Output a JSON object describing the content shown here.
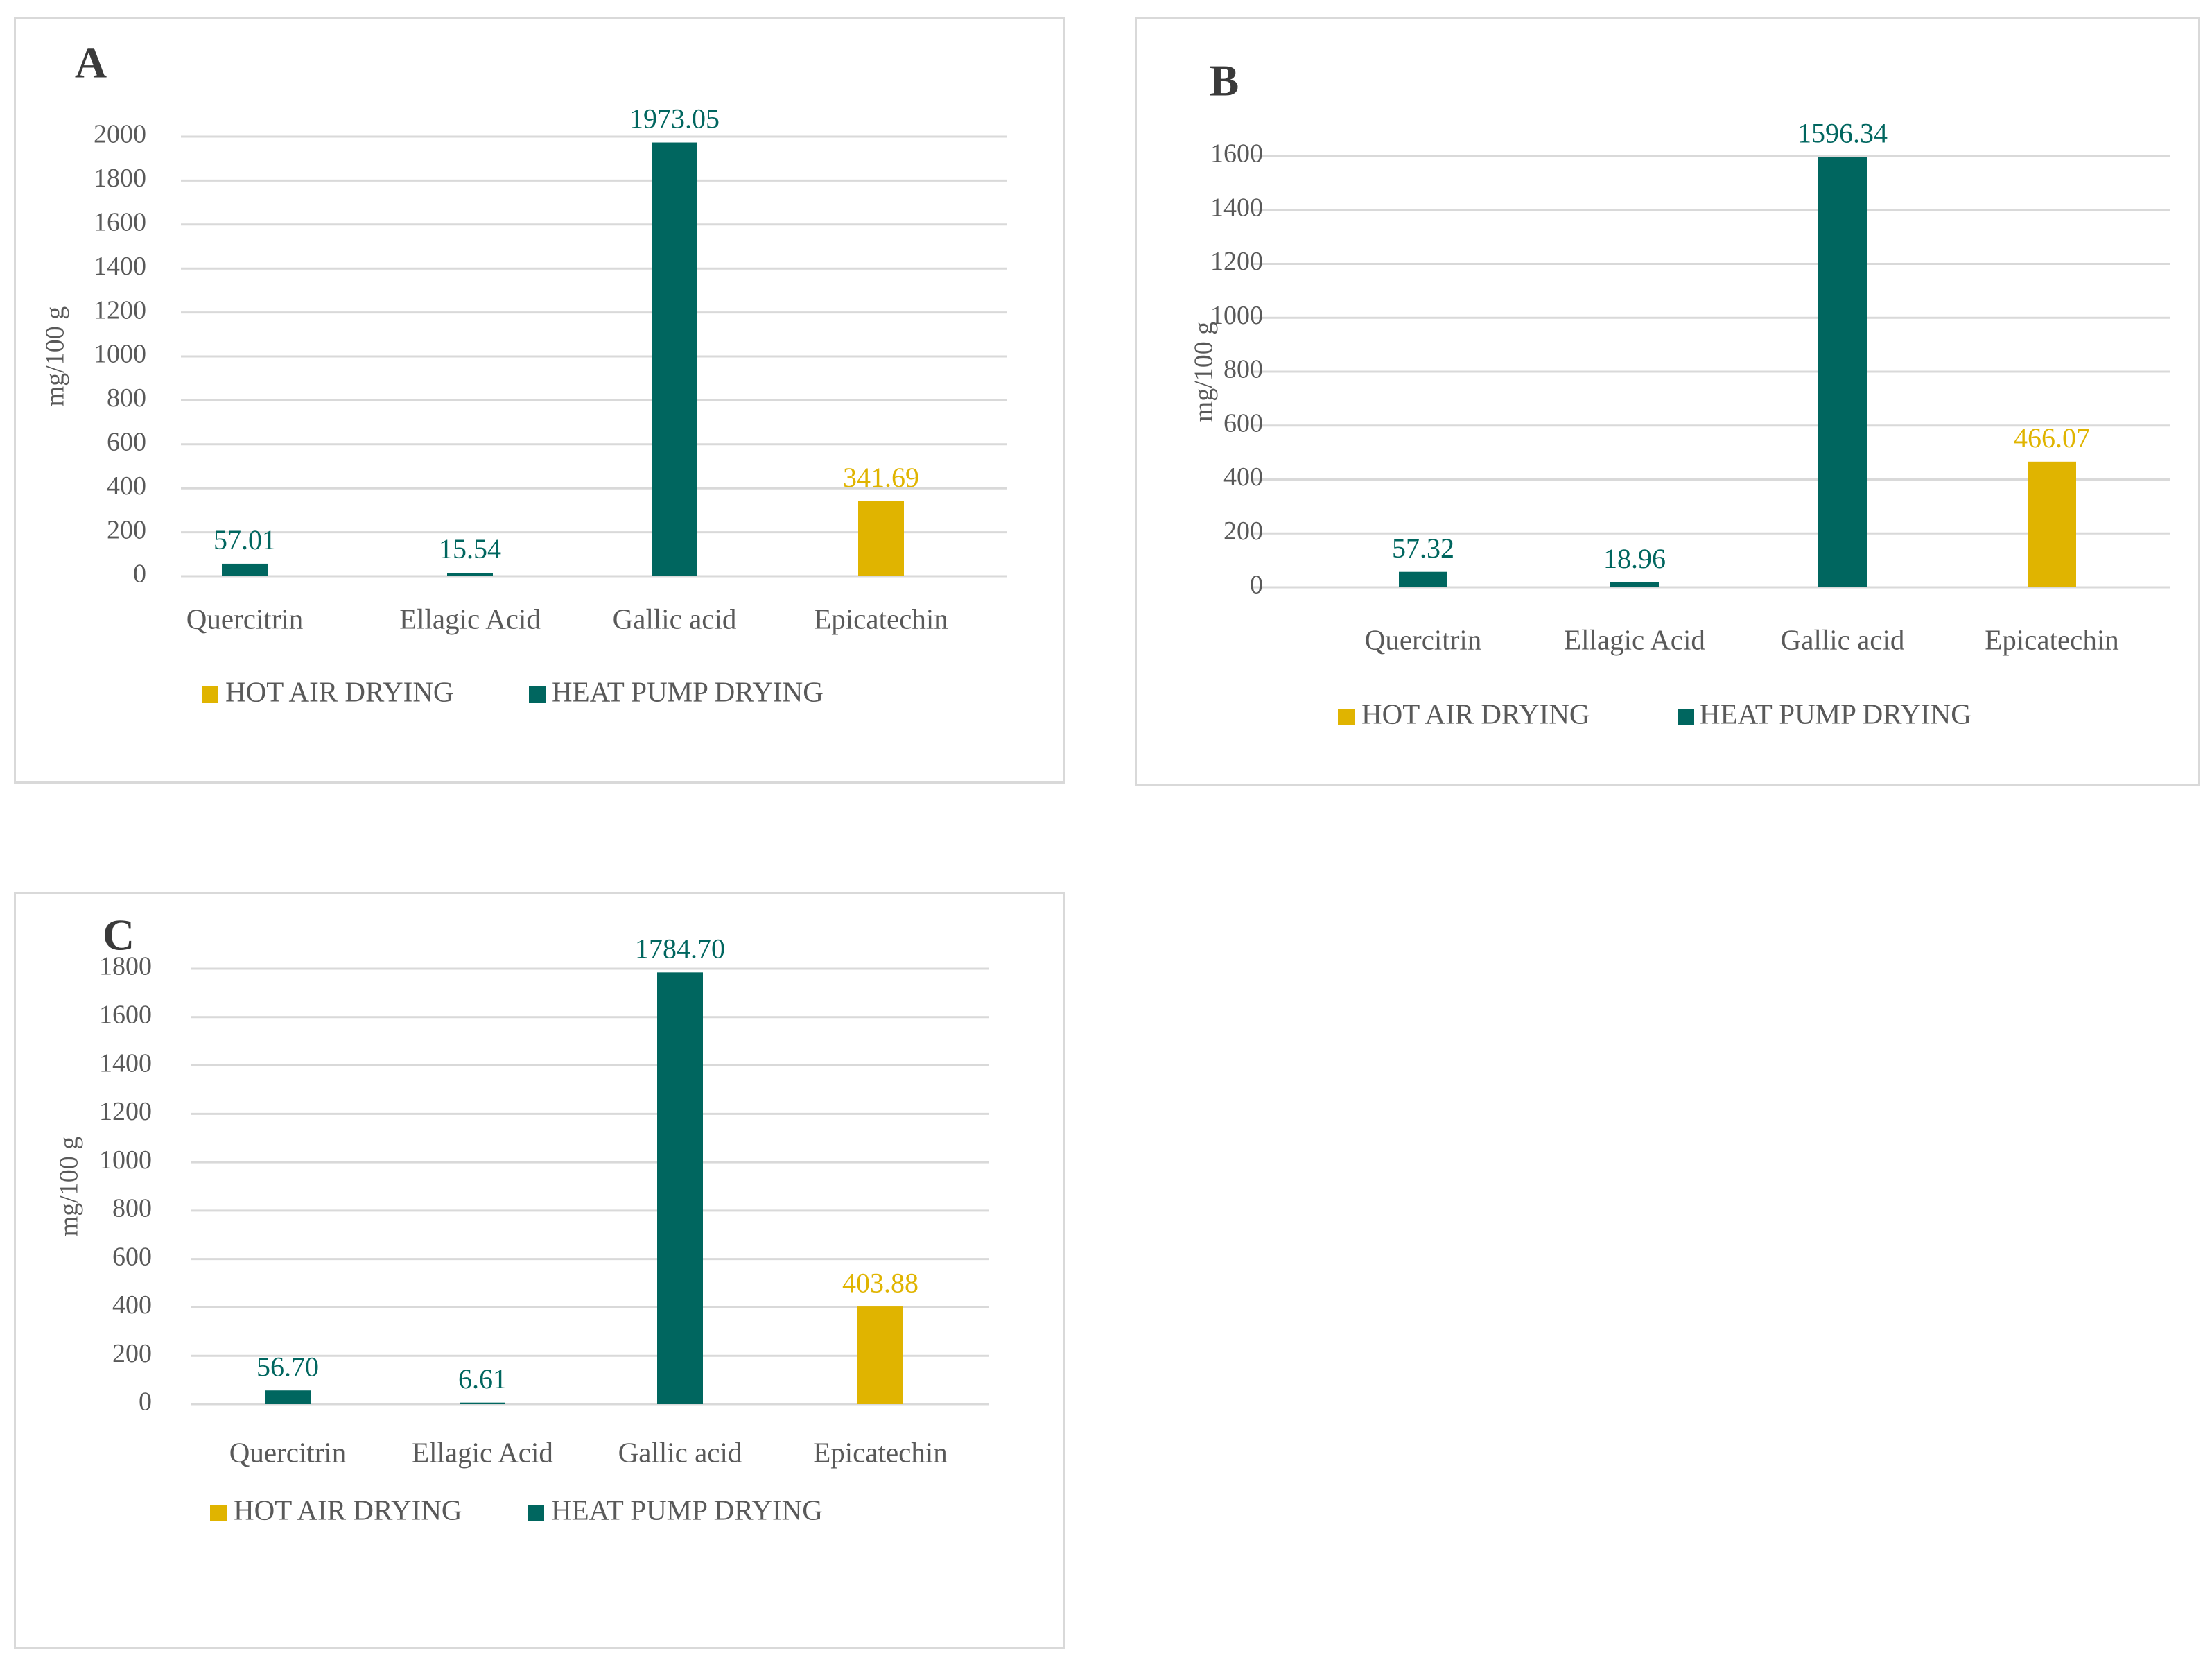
{
  "colors": {
    "hot_air": "#e0b400",
    "heat_pump": "#00665f",
    "grid": "#d9d9d9",
    "text": "#595959"
  },
  "legend": {
    "hot_air": "HOT AIR DRYING",
    "heat_pump": "HEAT PUMP DRYING"
  },
  "chart_data": [
    {
      "type": "bar",
      "title": "A",
      "ylabel": "mg/100 g",
      "xlabel": "",
      "categories": [
        "Quercitrin",
        "Ellagic Acid",
        "Gallic acid",
        "Epicatechin"
      ],
      "ylim": [
        0,
        2000
      ],
      "yticks": [
        0,
        200,
        400,
        600,
        800,
        1000,
        1200,
        1400,
        1600,
        1800,
        2000
      ],
      "bars": [
        {
          "category": "Quercitrin",
          "series": "heat_pump",
          "value": 57.01,
          "label": "57.01"
        },
        {
          "category": "Ellagic Acid",
          "series": "heat_pump",
          "value": 15.54,
          "label": "15.54"
        },
        {
          "category": "Gallic acid",
          "series": "heat_pump",
          "value": 1973.05,
          "label": "1973.05"
        },
        {
          "category": "Epicatechin",
          "series": "hot_air",
          "value": 341.69,
          "label": "341.69"
        }
      ]
    },
    {
      "type": "bar",
      "title": "B",
      "ylabel": "mg/100 g",
      "xlabel": "",
      "categories": [
        "Quercitrin",
        "Ellagic Acid",
        "Gallic acid",
        "Epicatechin"
      ],
      "ylim": [
        0,
        1600
      ],
      "yticks": [
        0,
        200,
        400,
        600,
        800,
        1000,
        1200,
        1400,
        1600
      ],
      "bars": [
        {
          "category": "Quercitrin",
          "series": "heat_pump",
          "value": 57.32,
          "label": "57.32"
        },
        {
          "category": "Ellagic Acid",
          "series": "heat_pump",
          "value": 18.96,
          "label": "18.96"
        },
        {
          "category": "Gallic acid",
          "series": "heat_pump",
          "value": 1596.34,
          "label": "1596.34"
        },
        {
          "category": "Epicatechin",
          "series": "hot_air",
          "value": 466.07,
          "label": "466.07"
        }
      ]
    },
    {
      "type": "bar",
      "title": "C",
      "ylabel": "mg/100 g",
      "xlabel": "",
      "categories": [
        "Quercitrin",
        "Ellagic Acid",
        "Gallic acid",
        "Epicatechin"
      ],
      "ylim": [
        0,
        1800
      ],
      "yticks": [
        0,
        200,
        400,
        600,
        800,
        1000,
        1200,
        1400,
        1600,
        1800
      ],
      "bars": [
        {
          "category": "Quercitrin",
          "series": "heat_pump",
          "value": 56.7,
          "label": "56.70"
        },
        {
          "category": "Ellagic Acid",
          "series": "heat_pump",
          "value": 6.61,
          "label": "6.61"
        },
        {
          "category": "Gallic acid",
          "series": "heat_pump",
          "value": 1784.7,
          "label": "1784.70"
        },
        {
          "category": "Epicatechin",
          "series": "hot_air",
          "value": 403.88,
          "label": "403.88"
        }
      ]
    }
  ]
}
